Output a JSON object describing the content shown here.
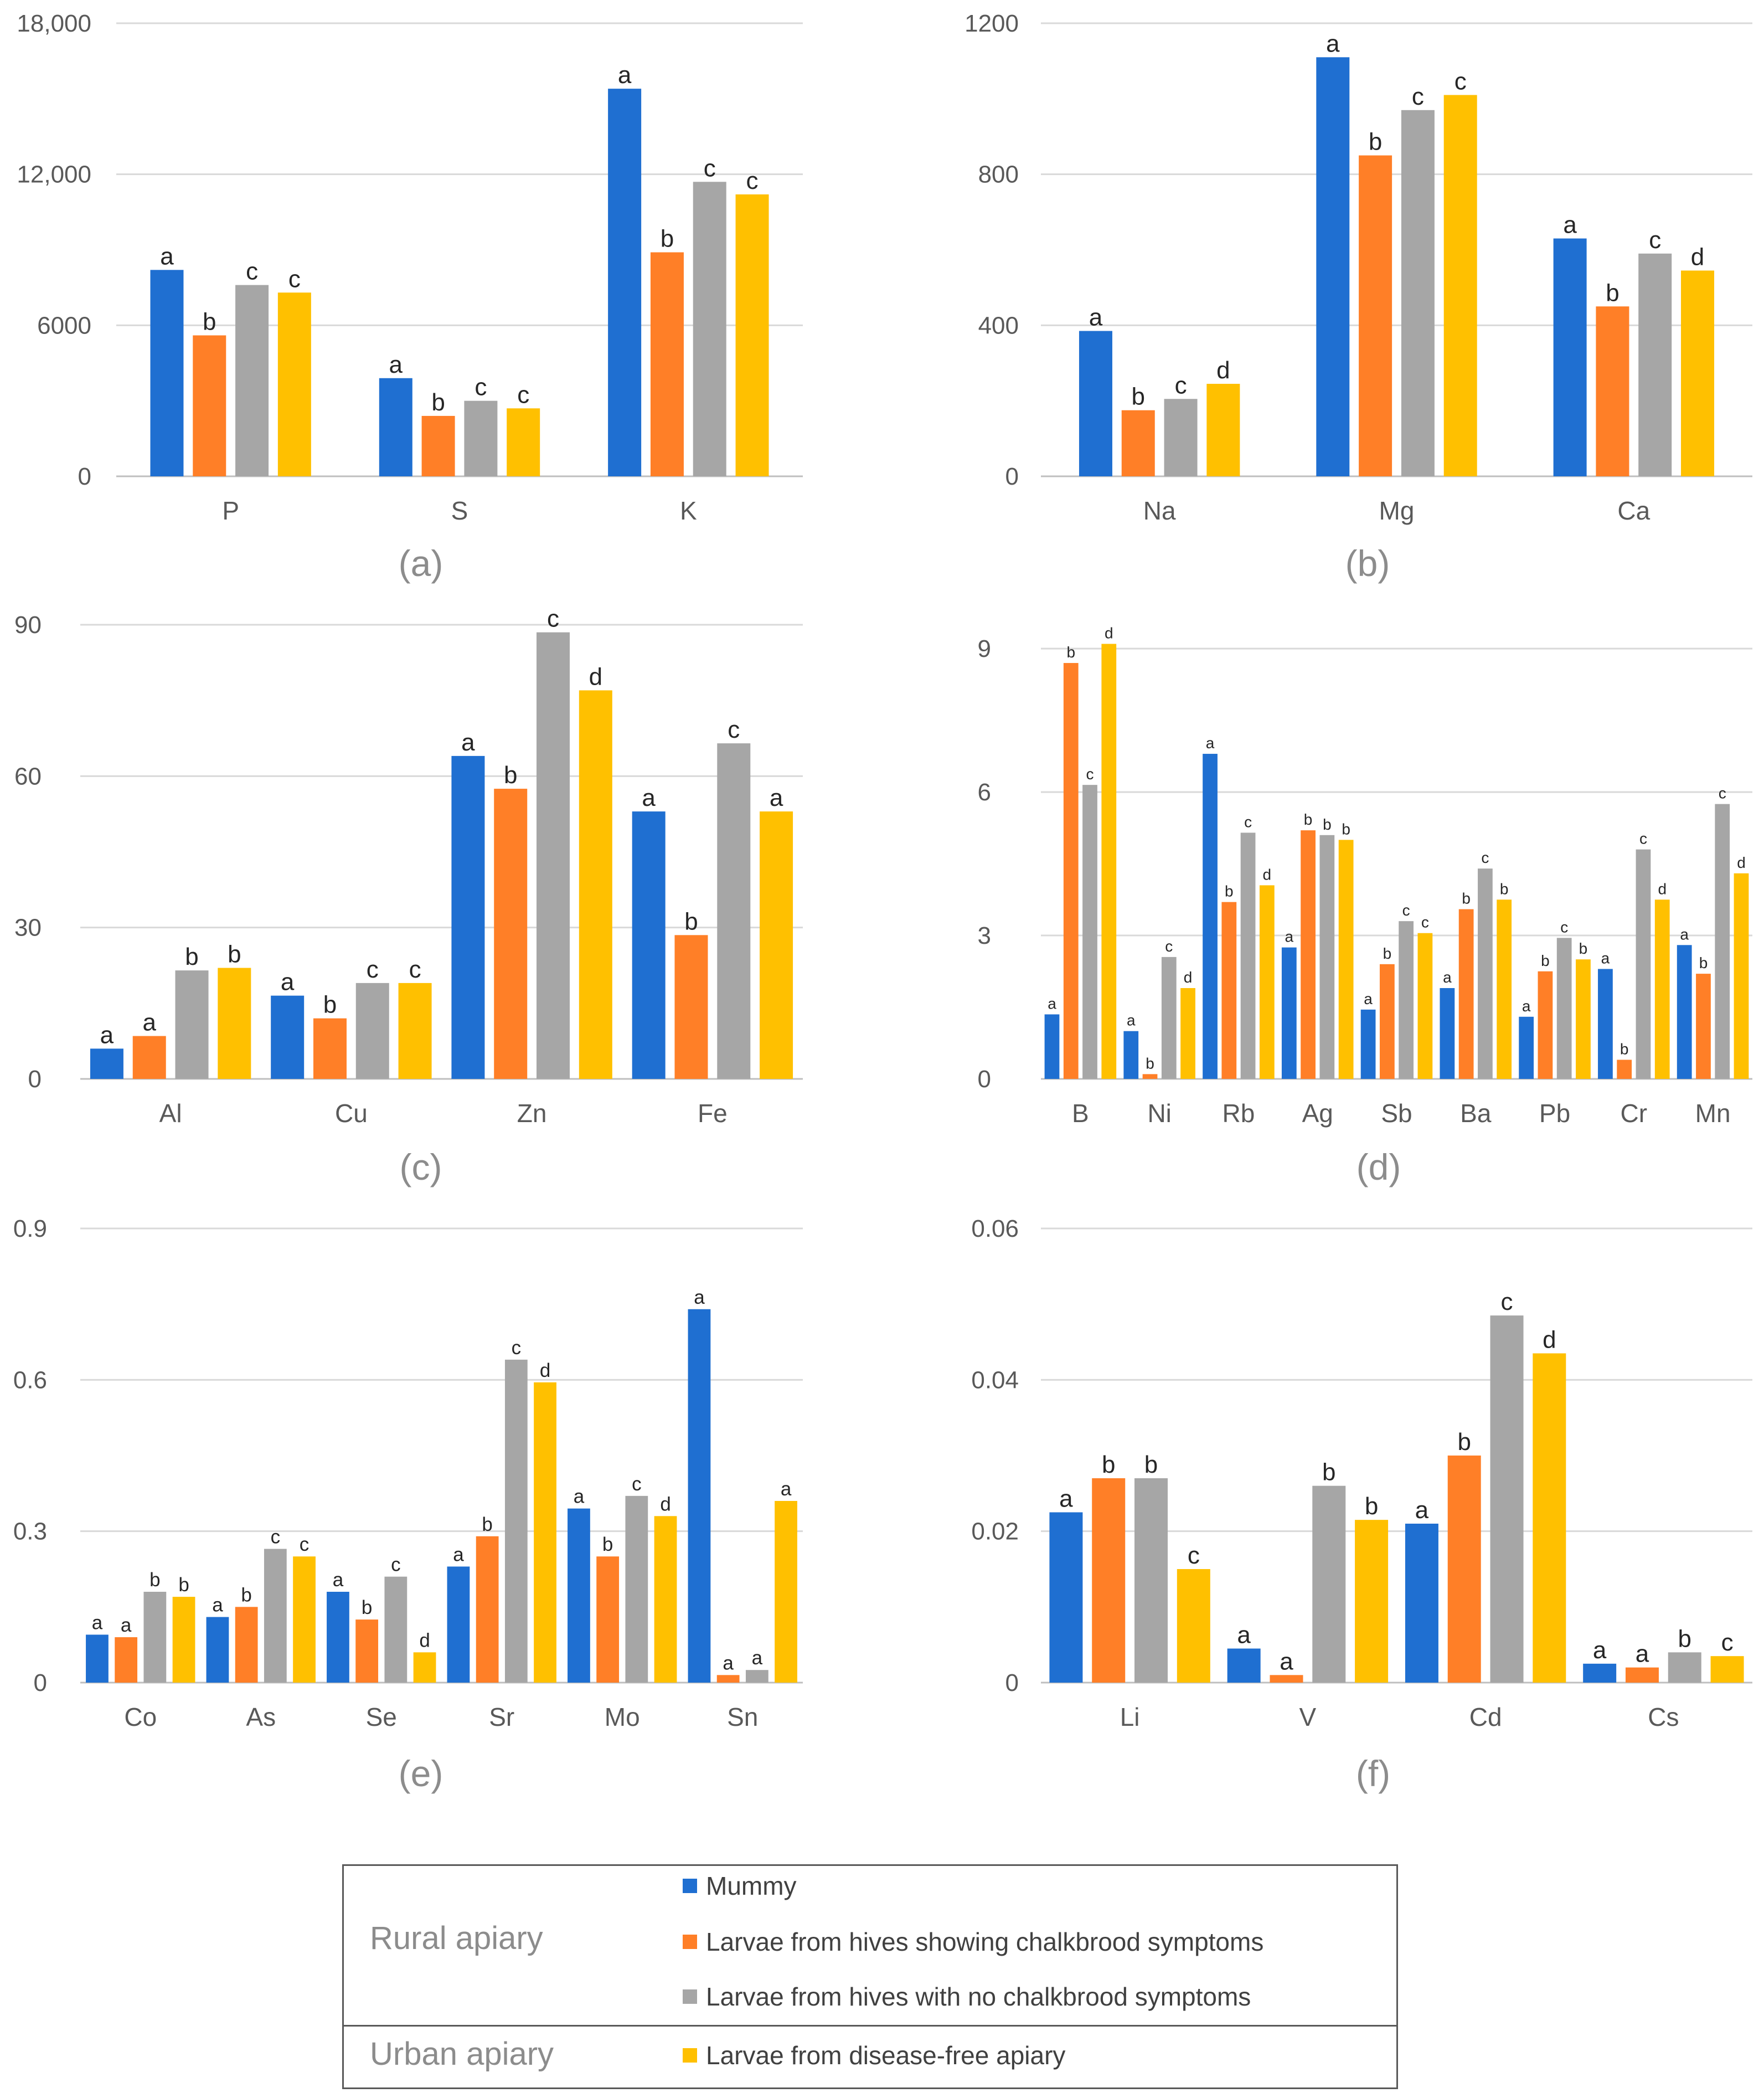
{
  "colors": {
    "Mummy": "#1f6fd1",
    "Larvae from hives showing chalkbrood symptoms": "#ff7f27",
    "Larvae from hives with no chalkbrood symptoms": "#a6a6a6",
    "Larvae from disease-free apiary": "#ffc000"
  },
  "chart_data": [
    {
      "panel": "(a)",
      "type": "bar",
      "categories": [
        "P",
        "S",
        "K"
      ],
      "ylim": [
        0,
        18000
      ],
      "yticks": [
        "0",
        "6000",
        "12,000",
        "18,000"
      ],
      "ytick_values": [
        0,
        6000,
        12000,
        18000
      ],
      "series": [
        {
          "name": "Mummy",
          "values": [
            8200,
            3900,
            15400
          ],
          "labels": [
            "a",
            "a",
            "a"
          ]
        },
        {
          "name": "Larvae from hives showing chalkbrood symptoms",
          "values": [
            5600,
            2400,
            8900
          ],
          "labels": [
            "b",
            "b",
            "b"
          ]
        },
        {
          "name": "Larvae from hives with no chalkbrood symptoms",
          "values": [
            7600,
            3000,
            11700
          ],
          "labels": [
            "c",
            "c",
            "c"
          ]
        },
        {
          "name": "Larvae from disease-free apiary",
          "values": [
            7300,
            2700,
            11200
          ],
          "labels": [
            "c",
            "c",
            "c"
          ]
        }
      ]
    },
    {
      "panel": "(b)",
      "type": "bar",
      "categories": [
        "Na",
        "Mg",
        "Ca"
      ],
      "ylim": [
        0,
        1200
      ],
      "yticks": [
        "0",
        "400",
        "800",
        "1200"
      ],
      "ytick_values": [
        0,
        400,
        800,
        1200
      ],
      "series": [
        {
          "name": "Mummy",
          "values": [
            385,
            1110,
            630
          ],
          "labels": [
            "a",
            "a",
            "a"
          ]
        },
        {
          "name": "Larvae from hives showing chalkbrood symptoms",
          "values": [
            175,
            850,
            450
          ],
          "labels": [
            "b",
            "b",
            "b"
          ]
        },
        {
          "name": "Larvae from hives with no chalkbrood symptoms",
          "values": [
            205,
            970,
            590
          ],
          "labels": [
            "c",
            "c",
            "c"
          ]
        },
        {
          "name": "Larvae from disease-free apiary",
          "values": [
            245,
            1010,
            545
          ],
          "labels": [
            "d",
            "c",
            "d"
          ]
        }
      ]
    },
    {
      "panel": "(c)",
      "type": "bar",
      "categories": [
        "Al",
        "Cu",
        "Zn",
        "Fe"
      ],
      "ylim": [
        0,
        90
      ],
      "yticks": [
        "0",
        "30",
        "60",
        "90"
      ],
      "ytick_values": [
        0,
        30,
        60,
        90
      ],
      "series": [
        {
          "name": "Mummy",
          "values": [
            6,
            16.5,
            64,
            53
          ],
          "labels": [
            "a",
            "a",
            "a",
            "a"
          ]
        },
        {
          "name": "Larvae from hives showing chalkbrood symptoms",
          "values": [
            8.5,
            12,
            57.5,
            28.5
          ],
          "labels": [
            "a",
            "b",
            "b",
            "b"
          ]
        },
        {
          "name": "Larvae from hives with no chalkbrood symptoms",
          "values": [
            21.5,
            19,
            88.5,
            66.5
          ],
          "labels": [
            "b",
            "c",
            "c",
            "c"
          ]
        },
        {
          "name": "Larvae from disease-free apiary",
          "values": [
            22,
            19,
            77,
            53
          ],
          "labels": [
            "b",
            "c",
            "d",
            "a"
          ]
        }
      ]
    },
    {
      "panel": "(d)",
      "type": "bar",
      "categories": [
        "B",
        "Ni",
        "Rb",
        "Ag",
        "Sb",
        "Ba",
        "Pb",
        "Cr",
        "Mn"
      ],
      "ylim": [
        0,
        9.5
      ],
      "yticks": [
        "0",
        "3",
        "6",
        "9"
      ],
      "ytick_values": [
        0,
        3,
        6,
        9
      ],
      "series": [
        {
          "name": "Mummy",
          "values": [
            1.35,
            1.0,
            6.8,
            2.75,
            1.45,
            1.9,
            1.3,
            2.3,
            2.8
          ],
          "labels": [
            "a",
            "a",
            "a",
            "a",
            "a",
            "a",
            "a",
            "a",
            "a"
          ]
        },
        {
          "name": "Larvae from hives showing chalkbrood symptoms",
          "values": [
            8.7,
            0.1,
            3.7,
            5.2,
            2.4,
            3.55,
            2.25,
            0.4,
            2.2
          ],
          "labels": [
            "b",
            "b",
            "b",
            "b",
            "b",
            "b",
            "b",
            "b",
            "b"
          ]
        },
        {
          "name": "Larvae from hives with no chalkbrood symptoms",
          "values": [
            6.15,
            2.55,
            5.15,
            5.1,
            3.3,
            4.4,
            2.95,
            4.8,
            5.75
          ],
          "labels": [
            "c",
            "c",
            "c",
            "b",
            "c",
            "c",
            "c",
            "c",
            "c"
          ]
        },
        {
          "name": "Larvae from disease-free apiary",
          "values": [
            9.1,
            1.9,
            4.05,
            5.0,
            3.05,
            3.75,
            2.5,
            3.75,
            4.3
          ],
          "labels": [
            "d",
            "d",
            "d",
            "b",
            "c",
            "b",
            "b",
            "d",
            "d"
          ]
        }
      ]
    },
    {
      "panel": "(e)",
      "type": "bar",
      "categories": [
        "Co",
        "As",
        "Se",
        "Sr",
        "Mo",
        "Sn"
      ],
      "ylim": [
        0,
        0.9
      ],
      "yticks": [
        "0",
        "0.3",
        "0.6",
        "0.9"
      ],
      "ytick_values": [
        0,
        0.3,
        0.6,
        0.9
      ],
      "series": [
        {
          "name": "Mummy",
          "values": [
            0.095,
            0.13,
            0.18,
            0.23,
            0.345,
            0.74
          ],
          "labels": [
            "a",
            "a",
            "a",
            "a",
            "a",
            "a"
          ]
        },
        {
          "name": "Larvae from hives showing chalkbrood symptoms",
          "values": [
            0.09,
            0.15,
            0.125,
            0.29,
            0.25,
            0.015
          ],
          "labels": [
            "a",
            "b",
            "b",
            "b",
            "b",
            "a"
          ]
        },
        {
          "name": "Larvae from hives with no chalkbrood symptoms",
          "values": [
            0.18,
            0.265,
            0.21,
            0.64,
            0.37,
            0.025
          ],
          "labels": [
            "b",
            "c",
            "c",
            "c",
            "c",
            "a"
          ]
        },
        {
          "name": "Larvae from disease-free apiary",
          "values": [
            0.17,
            0.25,
            0.06,
            0.595,
            0.33,
            0.36
          ],
          "labels": [
            "b",
            "c",
            "d",
            "d",
            "d",
            "a"
          ]
        }
      ]
    },
    {
      "panel": "(f)",
      "type": "bar",
      "categories": [
        "Li",
        "V",
        "Cd",
        "Cs"
      ],
      "ylim": [
        0,
        0.06
      ],
      "yticks": [
        "0",
        "0.02",
        "0.04",
        "0.06"
      ],
      "ytick_values": [
        0,
        0.02,
        0.04,
        0.06
      ],
      "series": [
        {
          "name": "Mummy",
          "values": [
            0.0225,
            0.0045,
            0.021,
            0.0025
          ],
          "labels": [
            "a",
            "a",
            "a",
            "a"
          ]
        },
        {
          "name": "Larvae from hives showing chalkbrood symptoms",
          "values": [
            0.027,
            0.001,
            0.03,
            0.002
          ],
          "labels": [
            "b",
            "a",
            "b",
            "a"
          ]
        },
        {
          "name": "Larvae from hives with no chalkbrood symptoms",
          "values": [
            0.027,
            0.026,
            0.0485,
            0.004
          ],
          "labels": [
            "b",
            "b",
            "c",
            "b"
          ]
        },
        {
          "name": "Larvae from disease-free apiary",
          "values": [
            0.015,
            0.0215,
            0.0435,
            0.0035
          ],
          "labels": [
            "c",
            "b",
            "d",
            "c"
          ]
        }
      ]
    }
  ],
  "legend": {
    "rural_label": "Rural apiary",
    "urban_label": "Urban apiary",
    "items": [
      "Mummy",
      "Larvae from hives showing chalkbrood symptoms",
      "Larvae from hives with no chalkbrood symptoms",
      "Larvae from disease-free apiary"
    ]
  }
}
